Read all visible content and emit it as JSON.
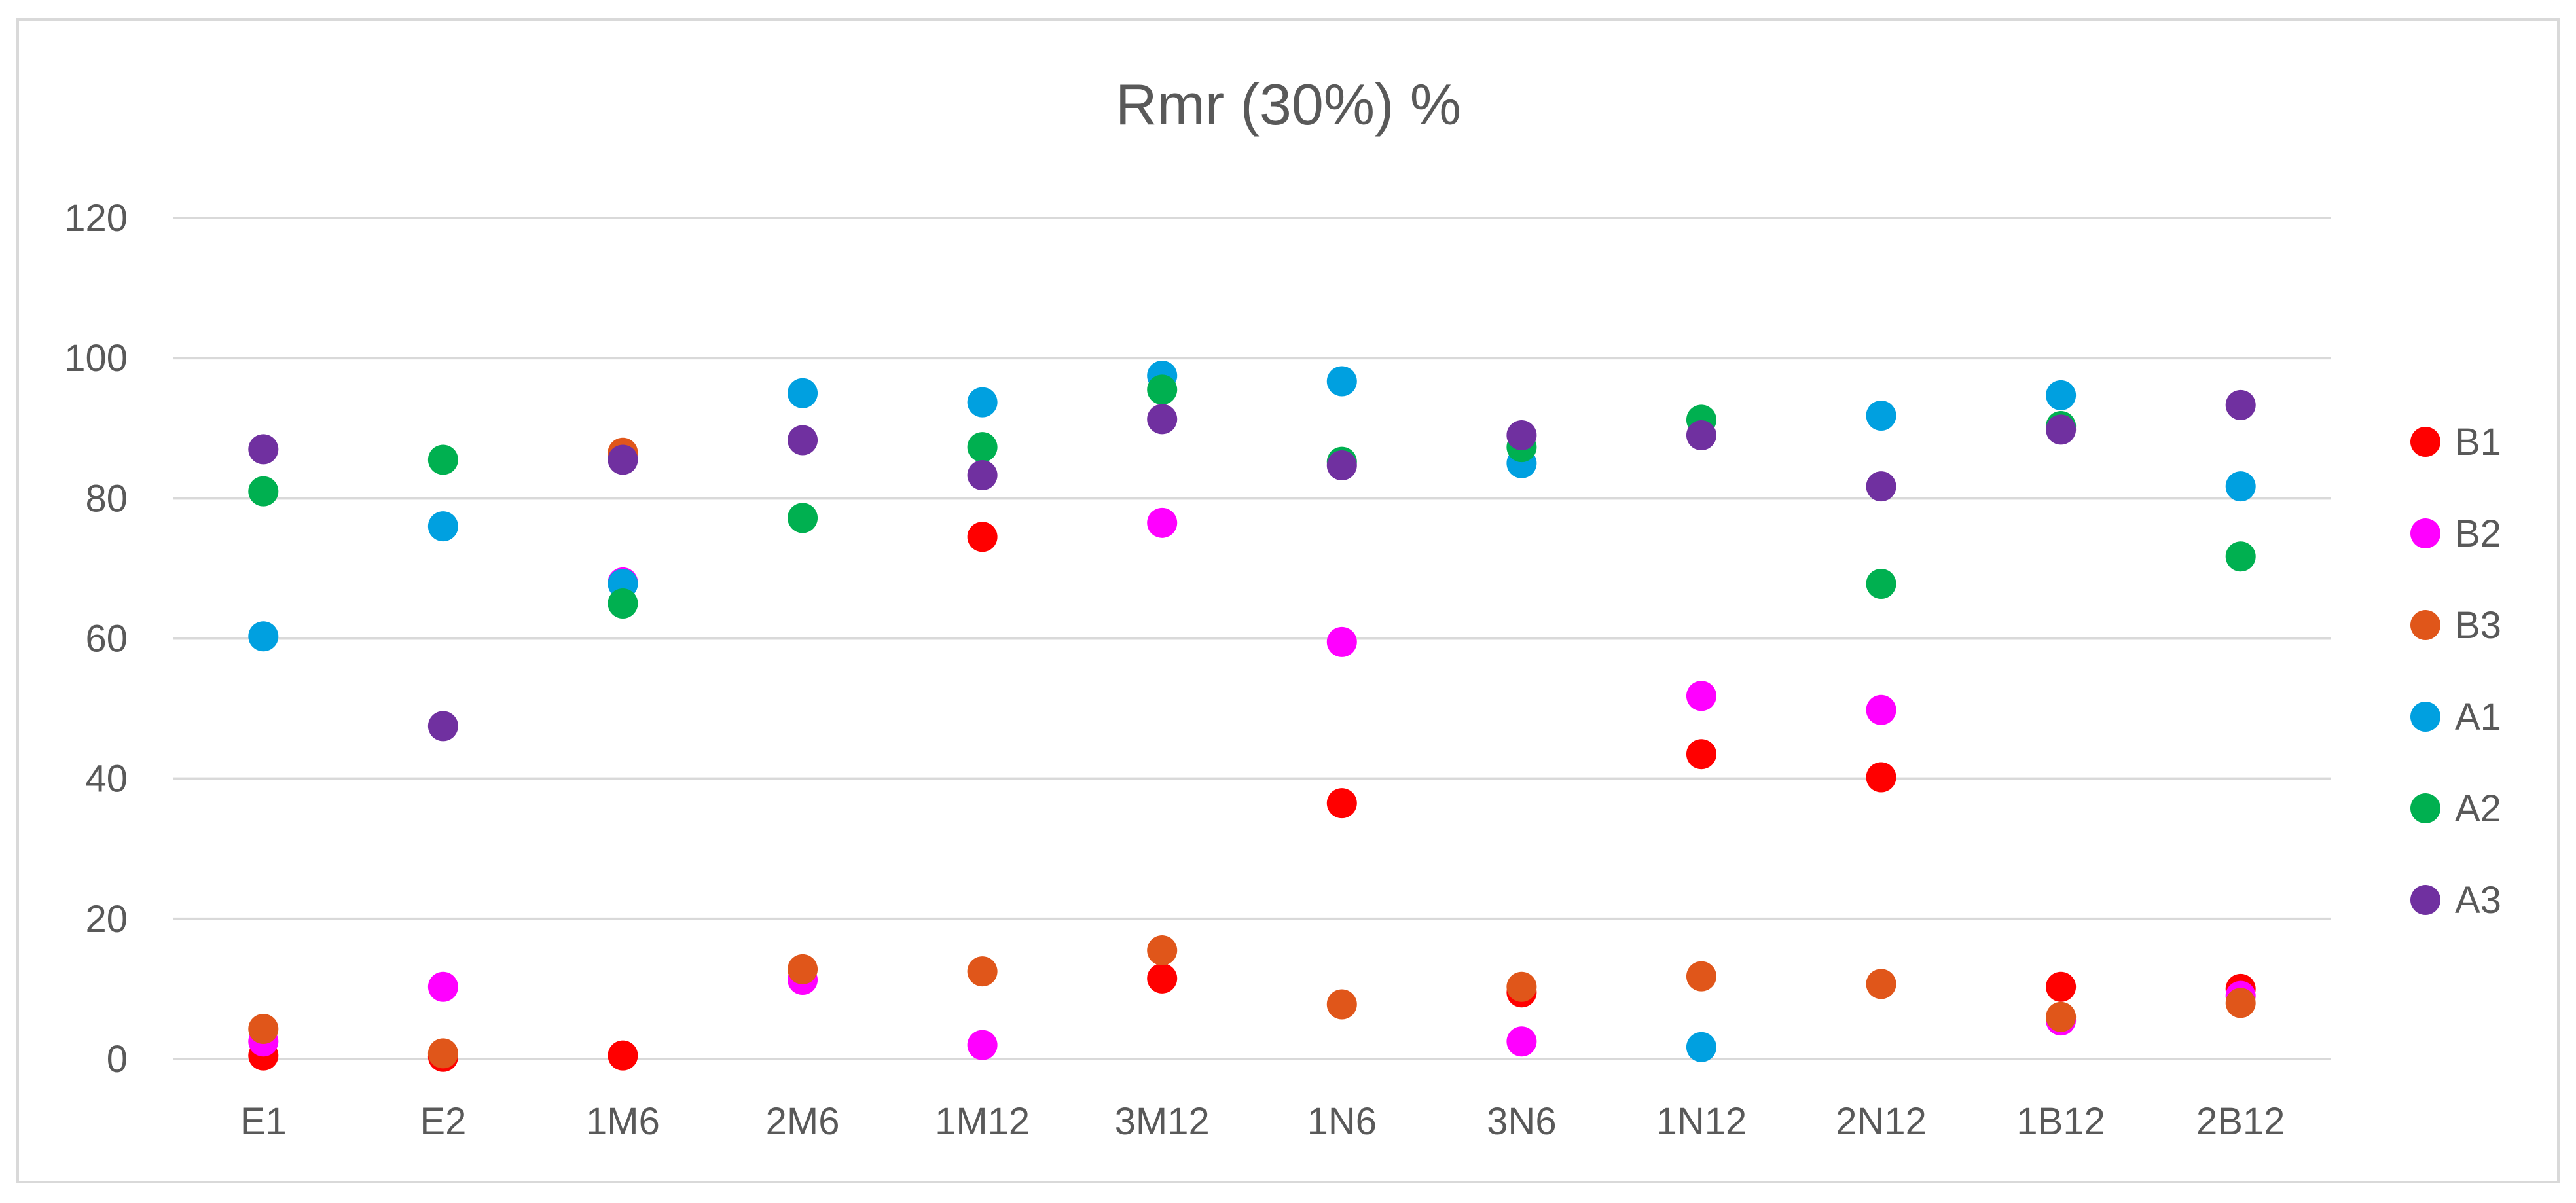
{
  "chart_data": {
    "type": "scatter",
    "title": "Rmr (30%)  %",
    "xlabel": "",
    "ylabel": "",
    "categories": [
      "E1",
      "E2",
      "1M6",
      "2M6",
      "1M12",
      "3M12",
      "1N6",
      "3N6",
      "1N12",
      "2N12",
      "1B12",
      "2B12"
    ],
    "ylim": [
      0,
      120
    ],
    "yticks": [
      0,
      20,
      40,
      60,
      80,
      100,
      120
    ],
    "grid": "horizontal",
    "legend_position": "right",
    "series": [
      {
        "name": "B1",
        "color": "#ff0000",
        "values": [
          0.5,
          0.3,
          0.5,
          null,
          74.5,
          11.5,
          36.5,
          9.5,
          43.5,
          40.2,
          10.3,
          10.0
        ]
      },
      {
        "name": "B2",
        "color": "#ff00ff",
        "values": [
          2.5,
          10.3,
          68.0,
          11.3,
          2.0,
          76.5,
          59.5,
          2.5,
          51.8,
          49.8,
          5.5,
          9.0
        ]
      },
      {
        "name": "B3",
        "color": "#e0561a",
        "values": [
          4.3,
          0.8,
          86.5,
          12.8,
          12.5,
          15.5,
          7.8,
          10.3,
          11.8,
          10.7,
          6.0,
          8.0
        ]
      },
      {
        "name": "A1",
        "color": "#00a0e0",
        "values": [
          60.3,
          76.0,
          67.8,
          95.0,
          93.7,
          97.5,
          96.7,
          85.0,
          1.7,
          91.8,
          94.7,
          81.7
        ]
      },
      {
        "name": "A2",
        "color": "#00b050",
        "values": [
          81.0,
          85.5,
          65.0,
          77.2,
          87.3,
          95.5,
          85.2,
          87.3,
          91.2,
          67.8,
          90.3,
          71.7
        ]
      },
      {
        "name": "A3",
        "color": "#7030a0",
        "values": [
          87.0,
          47.5,
          85.5,
          88.3,
          83.3,
          91.3,
          84.7,
          89.0,
          89.0,
          81.7,
          89.8,
          93.3
        ]
      }
    ]
  }
}
